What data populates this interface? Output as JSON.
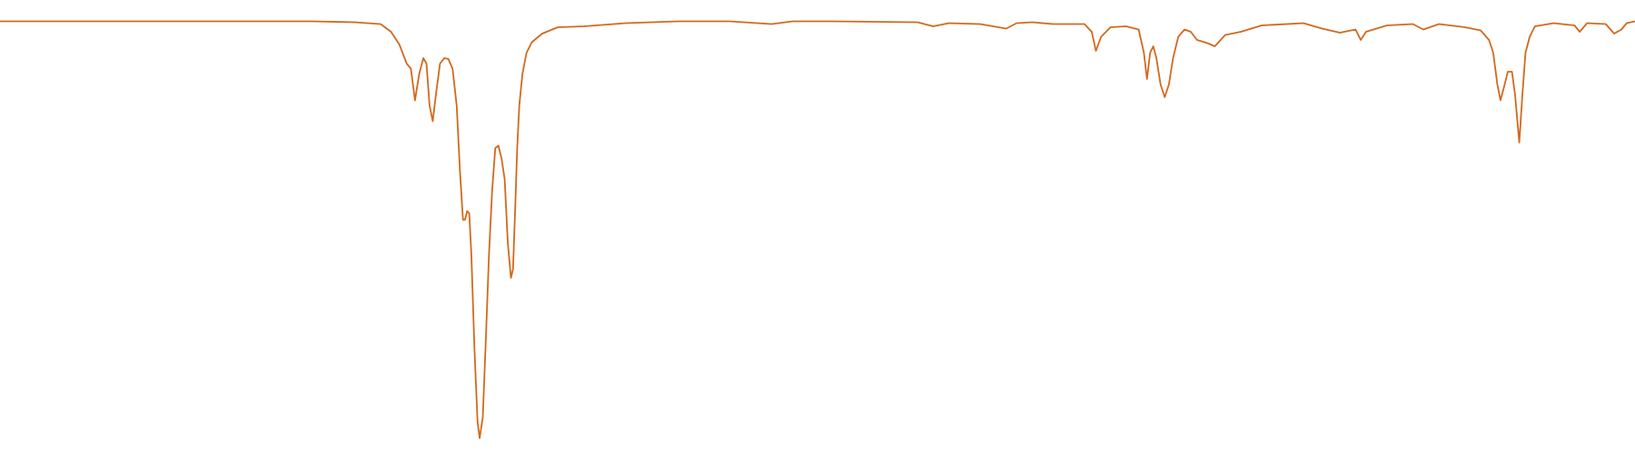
{
  "chart_data": {
    "type": "line",
    "x": [
      0,
      100,
      200,
      300,
      340,
      365,
      375,
      383,
      390,
      394,
      398,
      402,
      406,
      409,
      412,
      415,
      418,
      422,
      426,
      430,
      434,
      438,
      441,
      444,
      446,
      448,
      450,
      452,
      455,
      458,
      460,
      463,
      466,
      469,
      472,
      475,
      478,
      481,
      484,
      487,
      490,
      492,
      494,
      496,
      498,
      501,
      505,
      510,
      520,
      535,
      560,
      600,
      650,
      700,
      740,
      760,
      800,
      880,
      895,
      910,
      940,
      965,
      975,
      990,
      1010,
      1040,
      1047,
      1051,
      1056,
      1065,
      1080,
      1092,
      1097,
      1100,
      1103,
      1106,
      1109,
      1113,
      1117,
      1121,
      1125,
      1130,
      1136,
      1142,
      1148,
      1158,
      1165,
      1175,
      1190,
      1210,
      1250,
      1268,
      1285,
      1300,
      1305,
      1310,
      1330,
      1355,
      1365,
      1380,
      1405,
      1420,
      1428,
      1432,
      1436,
      1439,
      1443,
      1446,
      1450,
      1453,
      1457,
      1460,
      1463,
      1467,
      1472,
      1490,
      1510,
      1515,
      1522,
      1540,
      1548,
      1555,
      1560,
      1568
    ],
    "values": [
      95.3,
      95.3,
      95.3,
      95.3,
      95.1,
      94.7,
      93.0,
      90.2,
      86.0,
      84.9,
      77.9,
      83.7,
      87.2,
      86.0,
      76.7,
      73.3,
      79.1,
      86.0,
      87.2,
      87.0,
      84.9,
      76.7,
      62.8,
      51.6,
      51.6,
      53.5,
      53.0,
      44.2,
      23.3,
      7.0,
      3.5,
      8.1,
      25.6,
      44.2,
      58.1,
      67.4,
      67.9,
      65.1,
      60.5,
      46.5,
      38.8,
      40.7,
      53.5,
      67.4,
      76.7,
      83.7,
      88.4,
      90.7,
      92.6,
      94.0,
      94.2,
      94.9,
      95.3,
      95.3,
      94.7,
      95.3,
      95.3,
      95.1,
      94.2,
      94.9,
      94.7,
      93.7,
      94.9,
      95.1,
      94.7,
      94.7,
      93.0,
      88.8,
      91.9,
      94.0,
      94.2,
      93.5,
      88.4,
      82.6,
      88.4,
      89.8,
      87.2,
      81.4,
      78.6,
      81.4,
      87.2,
      91.9,
      93.5,
      93.0,
      91.2,
      90.5,
      89.8,
      92.3,
      93.0,
      94.4,
      94.9,
      93.7,
      92.8,
      93.5,
      91.2,
      93.0,
      94.4,
      94.7,
      93.5,
      94.7,
      94.0,
      93.3,
      91.2,
      88.4,
      81.4,
      77.9,
      81.4,
      84.2,
      84.2,
      79.1,
      68.6,
      79.1,
      88.4,
      91.9,
      94.2,
      94.9,
      94.4,
      93.0,
      94.9,
      94.7,
      92.6,
      93.5,
      94.9,
      95.3
    ],
    "color": "#d2691e",
    "xlim": [
      0,
      1568
    ],
    "ylim": [
      0,
      100
    ]
  }
}
